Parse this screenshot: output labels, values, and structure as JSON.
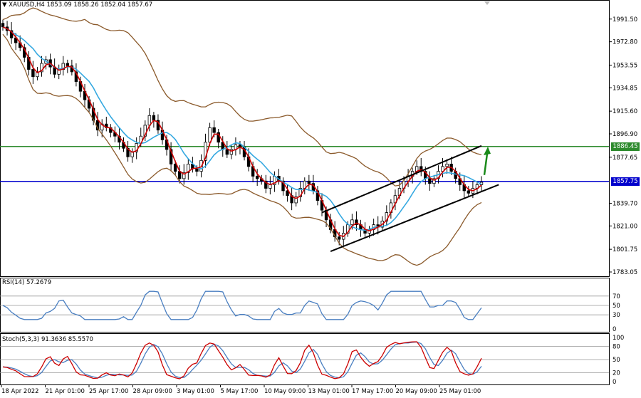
{
  "header": {
    "symbol": "XAUUSD,H4",
    "ohlc": "1853.09 1858.26 1852.04 1857.67"
  },
  "main_pane": {
    "price_ticks": [
      "1991.50",
      "1972.80",
      "1953.55",
      "1934.85",
      "1915.60",
      "1896.90",
      "1877.65",
      "1839.70",
      "1821.00",
      "1801.75",
      "1783.05"
    ],
    "tick_values": [
      1991.5,
      1972.8,
      1953.55,
      1934.85,
      1915.6,
      1896.9,
      1877.65,
      1839.7,
      1821.0,
      1801.75,
      1783.05
    ],
    "price_range": [
      1783.05,
      1999.0
    ],
    "hlines": [
      {
        "value": 1886.45,
        "label": "1886.45",
        "color": "#2e8b2e"
      },
      {
        "value": 1857.75,
        "label": "1857.75",
        "color": "#0000cc"
      }
    ],
    "colors": {
      "bull": "#000000",
      "bear": "#000000",
      "ema_fast": "#cc0000",
      "ema_slow": "#36a9e1",
      "bollinger": "#8b5a2b",
      "channel": "#000000",
      "arrow": "#1a8a1a"
    }
  },
  "rsi_pane": {
    "title": "RSI(14) 57.2679",
    "levels": [
      "70",
      "50",
      "30",
      "0"
    ],
    "level_values": [
      70,
      50,
      30,
      0
    ],
    "color": "#4a7fc1"
  },
  "stoch_pane": {
    "title": "Stoch(5,3,3) 91.3636 85.5570",
    "levels": [
      "100",
      "80",
      "50",
      "20",
      "0"
    ],
    "level_values": [
      100,
      80,
      50,
      20,
      0
    ],
    "main_color": "#cc0000",
    "signal_color": "#4a7fc1"
  },
  "time_axis": {
    "labels": [
      "18 Apr 2022",
      "21 Apr 01:00",
      "25 Apr 17:00",
      "28 Apr 09:00",
      "3 May 01:00",
      "5 May 17:00",
      "10 May 09:00",
      "13 May 01:00",
      "17 May 17:00",
      "20 May 09:00",
      "25 May 01:00"
    ]
  },
  "chart_data": {
    "type": "candlestick",
    "symbol": "XAUUSD",
    "timeframe": "H4",
    "close": [
      1985,
      1982,
      1976,
      1972,
      1968,
      1960,
      1950,
      1944,
      1948,
      1955,
      1958,
      1952,
      1946,
      1950,
      1955,
      1953,
      1948,
      1940,
      1932,
      1925,
      1918,
      1908,
      1900,
      1905,
      1902,
      1898,
      1895,
      1890,
      1885,
      1878,
      1882,
      1889,
      1895,
      1904,
      1912,
      1908,
      1900,
      1892,
      1884,
      1872,
      1866,
      1860,
      1865,
      1872,
      1868,
      1866,
      1875,
      1890,
      1902,
      1898,
      1890,
      1884,
      1880,
      1884,
      1888,
      1886,
      1878,
      1870,
      1862,
      1860,
      1858,
      1852,
      1855,
      1862,
      1858,
      1850,
      1846,
      1840,
      1845,
      1852,
      1858,
      1856,
      1850,
      1842,
      1834,
      1826,
      1818,
      1812,
      1810,
      1815,
      1822,
      1826,
      1822,
      1818,
      1815,
      1818,
      1822,
      1820,
      1825,
      1832,
      1840,
      1846,
      1852,
      1858,
      1862,
      1866,
      1870,
      1866,
      1860,
      1856,
      1860,
      1866,
      1870,
      1872,
      1866,
      1860,
      1855,
      1850,
      1848,
      1852,
      1855,
      1857
    ]
  }
}
